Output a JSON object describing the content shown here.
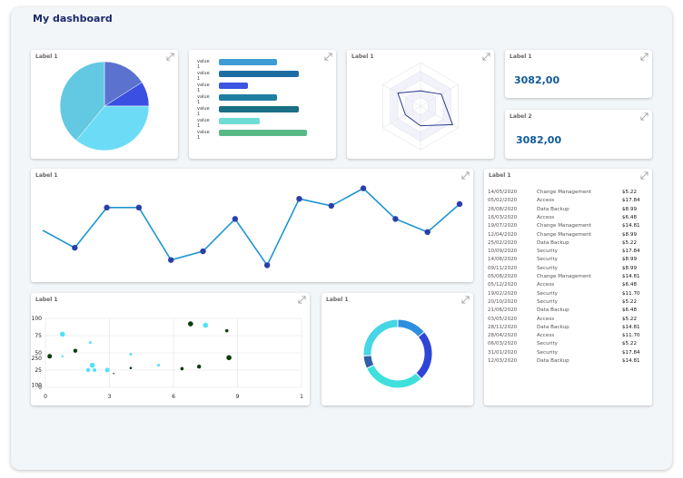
{
  "dashboard": {
    "title": "My dashboard"
  },
  "cards": {
    "pie": {
      "label": "Label 1"
    },
    "bars": {
      "label": ""
    },
    "radar": {
      "label": "Label 1"
    },
    "stat1": {
      "label": "Label 1",
      "value": "3082,00"
    },
    "stat2": {
      "label": "Label 2",
      "value": "3082,00"
    },
    "line": {
      "label": "Label 1"
    },
    "table": {
      "label": "Label 1"
    },
    "scatter": {
      "label": "Label 1"
    },
    "donut": {
      "label": "Label 1"
    }
  },
  "colors": {
    "accent": "#1e95d1",
    "title": "#1b2a6b",
    "stat": "#0f5a9a"
  },
  "icons": {
    "expand": "expand-icon"
  },
  "chart_data": [
    {
      "type": "pie",
      "slices": [
        {
          "value": 16,
          "color": "#5b72cf"
        },
        {
          "value": 9,
          "color": "#3b4fe0"
        },
        {
          "value": 36,
          "color": "#6cdcf6"
        },
        {
          "value": 39,
          "color": "#63c8e2"
        }
      ]
    },
    {
      "type": "bar",
      "orientation": "horizontal",
      "categories": [
        "value 1",
        "value 1",
        "value 1",
        "value 1",
        "value 1",
        "value 1",
        "value 1"
      ],
      "values": [
        64,
        88,
        32,
        64,
        88,
        45,
        97
      ],
      "colors": [
        "#3d9bd6",
        "#1f6ea3",
        "#3b55e0",
        "#1f7fa3",
        "#1a6f85",
        "#6edcd4",
        "#58b987"
      ],
      "xlim": [
        0,
        100
      ]
    },
    {
      "type": "radar",
      "axes": 6,
      "values": [
        0.35,
        0.55,
        0.85,
        0.45,
        0.4,
        0.6
      ],
      "max": 1
    },
    {
      "type": "line",
      "y": [
        52,
        32,
        78,
        78,
        18,
        28,
        65,
        12,
        88,
        80,
        100,
        65,
        50,
        82
      ],
      "ylim": [
        0,
        110
      ],
      "color": "#1e95d1",
      "marker_color": "#2b3fa8"
    },
    {
      "type": "scatter",
      "x_ticks": [
        "0",
        "3",
        "6",
        "9",
        "1"
      ],
      "y_ticks": [
        "100",
        "75",
        "50",
        "25",
        "0"
      ],
      "y_extra_ticks": [
        "250",
        "100"
      ],
      "xlim": [
        0,
        12
      ],
      "ylim": [
        0,
        100
      ],
      "points": [
        {
          "x": 0.2,
          "y": 45,
          "r": 2.5,
          "color": "#0b3d0b"
        },
        {
          "x": 0.8,
          "y": 77,
          "r": 2.8,
          "color": "#4fe3f7"
        },
        {
          "x": 0.8,
          "y": 45,
          "r": 1.2,
          "color": "#4fe3f7"
        },
        {
          "x": 1.4,
          "y": 53,
          "r": 2.2,
          "color": "#0b3d0b"
        },
        {
          "x": 2.1,
          "y": 65,
          "r": 1.5,
          "color": "#4fe3f7"
        },
        {
          "x": 2.0,
          "y": 25,
          "r": 2.2,
          "color": "#4fe3f7"
        },
        {
          "x": 2.2,
          "y": 32,
          "r": 2.8,
          "color": "#4fe3f7"
        },
        {
          "x": 2.3,
          "y": 25,
          "r": 2.0,
          "color": "#4fe3f7"
        },
        {
          "x": 2.9,
          "y": 25,
          "r": 2.5,
          "color": "#4fe3f7"
        },
        {
          "x": 3.2,
          "y": 20,
          "r": 0.8,
          "color": "#0b3d0b"
        },
        {
          "x": 4.0,
          "y": 48,
          "r": 1.5,
          "color": "#4fe3f7"
        },
        {
          "x": 4.0,
          "y": 28,
          "r": 1.3,
          "color": "#0b3d0b"
        },
        {
          "x": 5.3,
          "y": 32,
          "r": 1.5,
          "color": "#4fe3f7"
        },
        {
          "x": 6.4,
          "y": 27,
          "r": 1.8,
          "color": "#0b3d0b"
        },
        {
          "x": 6.8,
          "y": 92,
          "r": 2.8,
          "color": "#0b3d0b"
        },
        {
          "x": 7.2,
          "y": 30,
          "r": 2.2,
          "color": "#0b3d0b"
        },
        {
          "x": 7.5,
          "y": 90,
          "r": 2.8,
          "color": "#4fe3f7"
        },
        {
          "x": 8.5,
          "y": 82,
          "r": 1.8,
          "color": "#0b3d0b"
        },
        {
          "x": 8.6,
          "y": 43,
          "r": 2.8,
          "color": "#0b3d0b"
        }
      ]
    },
    {
      "type": "donut",
      "slices": [
        {
          "value": 14,
          "color": "#2c8fe0"
        },
        {
          "value": 24,
          "color": "#2f45d8"
        },
        {
          "value": 30,
          "color": "#3fe0dc"
        },
        {
          "value": 6,
          "color": "#2e5fa8"
        },
        {
          "value": 26,
          "color": "#46d6e6"
        }
      ]
    }
  ],
  "table": {
    "rows": [
      {
        "date": "14/05/2020",
        "category": "Change Management",
        "amount": "$5.22"
      },
      {
        "date": "05/02/2020",
        "category": "Access",
        "amount": "$17.84"
      },
      {
        "date": "26/08/2020",
        "category": "Data Backup",
        "amount": "$8.99"
      },
      {
        "date": "16/03/2020",
        "category": "Access",
        "amount": "$6.48"
      },
      {
        "date": "19/07/2020",
        "category": "Change Management",
        "amount": "$14.81"
      },
      {
        "date": "12/04/2020",
        "category": "Change Management",
        "amount": "$8.99"
      },
      {
        "date": "25/02/2020",
        "category": "Data Backup",
        "amount": "$5.22"
      },
      {
        "date": "10/09/2020",
        "category": "Security",
        "amount": "$17.84"
      },
      {
        "date": "14/06/2020",
        "category": "Security",
        "amount": "$8.99"
      },
      {
        "date": "09/11/2020",
        "category": "Security",
        "amount": "$8.99"
      },
      {
        "date": "05/08/2020",
        "category": "Change Management",
        "amount": "$14.81"
      },
      {
        "date": "05/12/2020",
        "category": "Access",
        "amount": "$6.48"
      },
      {
        "date": "19/02/2020",
        "category": "Security",
        "amount": "$11.70"
      },
      {
        "date": "20/10/2020",
        "category": "Security",
        "amount": "$5.22"
      },
      {
        "date": "21/06/2020",
        "category": "Data Backup",
        "amount": "$6.48"
      },
      {
        "date": "03/05/2020",
        "category": "Access",
        "amount": "$5.22"
      },
      {
        "date": "28/11/2020",
        "category": "Data Backup",
        "amount": "$14.81"
      },
      {
        "date": "28/04/2020",
        "category": "Access",
        "amount": "$11.70"
      },
      {
        "date": "06/03/2020",
        "category": "Security",
        "amount": "$5.22"
      },
      {
        "date": "31/01/2020",
        "category": "Security",
        "amount": "$17.84"
      },
      {
        "date": "12/03/2020",
        "category": "Data Backup",
        "amount": "$14.81"
      }
    ]
  }
}
